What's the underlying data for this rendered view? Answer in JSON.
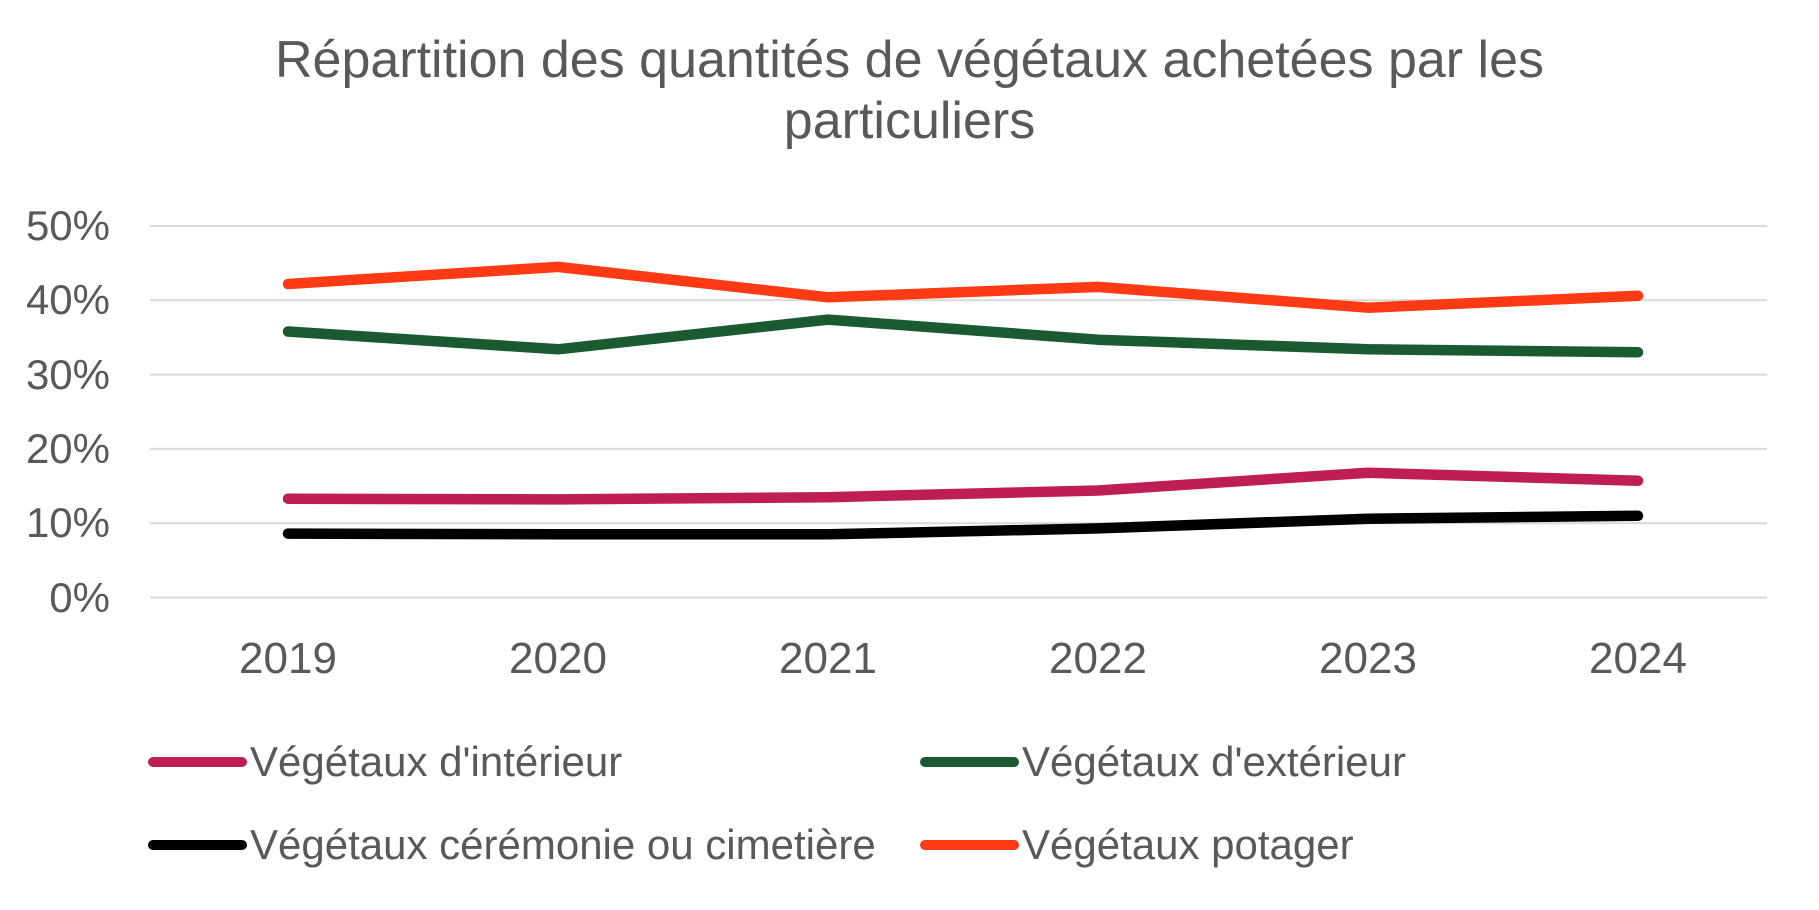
{
  "title": "Répartition des quantités de végétaux achetées par les particuliers",
  "colors": {
    "text_gray": "#595959",
    "gridline": "#D9D9D9",
    "series_interieur": "#BE1E55",
    "series_exterieur": "#1A5A31",
    "series_ceremonie": "#000000",
    "series_potager": "#FF3A14"
  },
  "chart_data": {
    "type": "line",
    "categories": [
      "2019",
      "2020",
      "2021",
      "2022",
      "2023",
      "2024"
    ],
    "series": [
      {
        "name": "Végétaux d'intérieur",
        "color": "#BE1E55",
        "values": [
          13.3,
          13.2,
          13.5,
          14.4,
          16.8,
          15.7
        ]
      },
      {
        "name": "Végétaux d'extérieur",
        "color": "#1A5A31",
        "values": [
          35.8,
          33.4,
          37.4,
          34.7,
          33.4,
          33.0
        ]
      },
      {
        "name": "Végétaux cérémonie ou cimetière",
        "color": "#000000",
        "values": [
          8.6,
          8.5,
          8.5,
          9.3,
          10.6,
          11.0
        ]
      },
      {
        "name": "Végétaux potager",
        "color": "#FF3A14",
        "values": [
          42.2,
          44.5,
          40.4,
          41.8,
          39.0,
          40.6
        ]
      }
    ],
    "title": "Répartition des quantités de végétaux achetées par les particuliers",
    "xlabel": "",
    "ylabel": "",
    "y_ticks": [
      "0%",
      "10%",
      "20%",
      "30%",
      "40%",
      "50%"
    ],
    "ylim": [
      0,
      50
    ],
    "grid": true,
    "legend_position": "bottom"
  }
}
